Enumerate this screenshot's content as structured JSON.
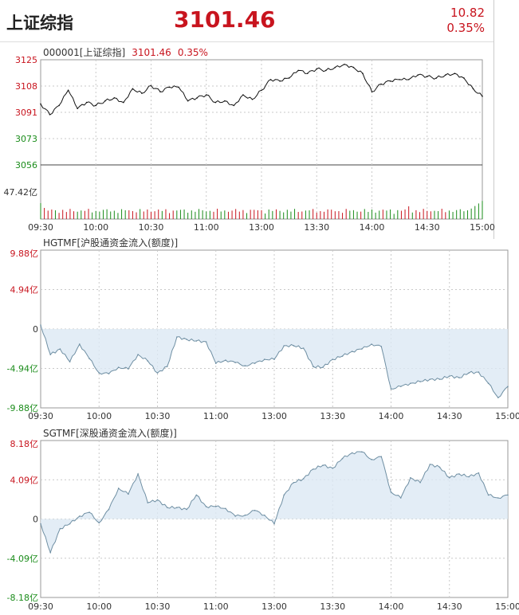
{
  "header": {
    "name": "上证综指",
    "price": "3101.46",
    "change": "10.82",
    "change_pct": "0.35%"
  },
  "info_line": {
    "code": "000001[上证综指]",
    "price": "3101.46",
    "pct": "0.35%"
  },
  "colors": {
    "up": "#c8141e",
    "down": "#1a8c1a",
    "line": "#111111",
    "flow": "#6f8fa3",
    "flow_fill": "#dce9f4",
    "grid": "#c9c9c9"
  },
  "chart_data": [
    {
      "type": "line",
      "title": "000001[上证综指]",
      "y_tick_labels": [
        "3125",
        "3108",
        "3091",
        "3073",
        "3056"
      ],
      "ylim": [
        3056,
        3125
      ],
      "x_tick_labels": [
        "09:30",
        "10:00",
        "10:30",
        "11:00",
        "13:00",
        "13:30",
        "14:00",
        "14:30",
        "15:00"
      ],
      "x": [
        "09:30",
        "09:35",
        "09:40",
        "09:45",
        "09:50",
        "09:55",
        "10:00",
        "10:05",
        "10:10",
        "10:15",
        "10:20",
        "10:25",
        "10:30",
        "10:35",
        "10:40",
        "10:45",
        "10:50",
        "10:55",
        "11:00",
        "11:05",
        "11:10",
        "11:15",
        "11:20",
        "11:25",
        "11:30",
        "13:05",
        "13:10",
        "13:15",
        "13:20",
        "13:25",
        "13:30",
        "13:35",
        "13:40",
        "13:45",
        "13:50",
        "13:55",
        "14:00",
        "14:05",
        "14:10",
        "14:15",
        "14:20",
        "14:25",
        "14:30",
        "14:35",
        "14:40",
        "14:45",
        "14:50",
        "14:55",
        "15:00"
      ],
      "values": [
        3096,
        3089,
        3095,
        3105,
        3093,
        3097,
        3095,
        3098,
        3100,
        3097,
        3106,
        3103,
        3108,
        3104,
        3107,
        3107,
        3098,
        3100,
        3102,
        3097,
        3098,
        3095,
        3102,
        3099,
        3105,
        3112,
        3111,
        3113,
        3118,
        3116,
        3119,
        3118,
        3120,
        3122,
        3120,
        3116,
        3104,
        3109,
        3111,
        3112,
        3112,
        3115,
        3114,
        3113,
        3115,
        3116,
        3113,
        3106,
        3101
      ],
      "volume_label": "47.42亿"
    },
    {
      "type": "area",
      "title": "HGTMF[沪股通资金流入(额度)]",
      "unit": "亿",
      "y_tick_labels": [
        "9.88亿",
        "4.94亿",
        "0",
        "-4.94亿",
        "-9.88亿"
      ],
      "ylim": [
        -9.88,
        9.88
      ],
      "x_tick_labels": [
        "09:30",
        "10:00",
        "10:30",
        "11:00",
        "13:00",
        "13:30",
        "14:00",
        "14:30",
        "15:00"
      ],
      "x": [
        "09:30",
        "09:35",
        "09:40",
        "09:45",
        "09:50",
        "09:55",
        "10:00",
        "10:05",
        "10:10",
        "10:15",
        "10:20",
        "10:25",
        "10:30",
        "10:35",
        "10:40",
        "10:45",
        "10:50",
        "10:55",
        "11:00",
        "11:05",
        "11:10",
        "11:15",
        "11:20",
        "11:25",
        "11:30",
        "13:05",
        "13:10",
        "13:15",
        "13:20",
        "13:25",
        "13:30",
        "13:35",
        "13:40",
        "13:45",
        "13:50",
        "13:55",
        "14:00",
        "14:05",
        "14:10",
        "14:15",
        "14:20",
        "14:25",
        "14:30",
        "14:35",
        "14:40",
        "14:45",
        "14:50",
        "14:55",
        "15:00"
      ],
      "values": [
        0.5,
        -3.2,
        -2.5,
        -4.1,
        -1.9,
        -3.7,
        -5.5,
        -5.6,
        -4.8,
        -5.0,
        -3.2,
        -4.0,
        -5.5,
        -4.7,
        -1.0,
        -1.3,
        -1.5,
        -1.6,
        -4.3,
        -3.9,
        -4.2,
        -4.6,
        -4.3,
        -3.8,
        -3.8,
        -2.1,
        -2.1,
        -2.4,
        -4.7,
        -4.8,
        -3.8,
        -3.4,
        -2.8,
        -2.5,
        -1.9,
        -2.2,
        -7.5,
        -7.2,
        -6.8,
        -6.6,
        -6.3,
        -6.3,
        -5.9,
        -6.1,
        -5.5,
        -5.4,
        -6.8,
        -8.6,
        -7.2
      ]
    },
    {
      "type": "area",
      "title": "SGTMF[深股通资金流入(额度)]",
      "unit": "亿",
      "y_tick_labels": [
        "8.18亿",
        "4.09亿",
        "0",
        "-4.09亿",
        "-8.18亿"
      ],
      "ylim": [
        -8.18,
        8.18
      ],
      "x_tick_labels": [
        "09:30",
        "10:00",
        "10:30",
        "11:00",
        "13:00",
        "13:30",
        "14:00",
        "14:30",
        "15:00"
      ],
      "x": [
        "09:30",
        "09:35",
        "09:40",
        "09:45",
        "09:50",
        "09:55",
        "10:00",
        "10:05",
        "10:10",
        "10:15",
        "10:20",
        "10:25",
        "10:30",
        "10:35",
        "10:40",
        "10:45",
        "10:50",
        "10:55",
        "11:00",
        "11:05",
        "11:10",
        "11:15",
        "11:20",
        "11:25",
        "11:30",
        "13:05",
        "13:10",
        "13:15",
        "13:20",
        "13:25",
        "13:30",
        "13:35",
        "13:40",
        "13:45",
        "13:50",
        "13:55",
        "14:00",
        "14:05",
        "14:10",
        "14:15",
        "14:20",
        "14:25",
        "14:30",
        "14:35",
        "14:40",
        "14:45",
        "14:50",
        "14:55",
        "15:00"
      ],
      "values": [
        -0.5,
        -3.5,
        -1.0,
        -0.5,
        0.3,
        0.7,
        -0.4,
        1.0,
        3.2,
        2.6,
        4.7,
        1.7,
        2.0,
        1.2,
        1.2,
        1.0,
        2.5,
        1.3,
        1.3,
        1.1,
        0.3,
        0.4,
        0.9,
        0.4,
        -0.5,
        2.5,
        3.8,
        4.2,
        5.2,
        5.6,
        5.3,
        6.3,
        6.9,
        7.0,
        6.2,
        6.5,
        2.8,
        2.2,
        4.3,
        3.8,
        5.7,
        5.4,
        4.3,
        4.7,
        4.4,
        4.8,
        2.5,
        2.2,
        2.5
      ]
    }
  ]
}
